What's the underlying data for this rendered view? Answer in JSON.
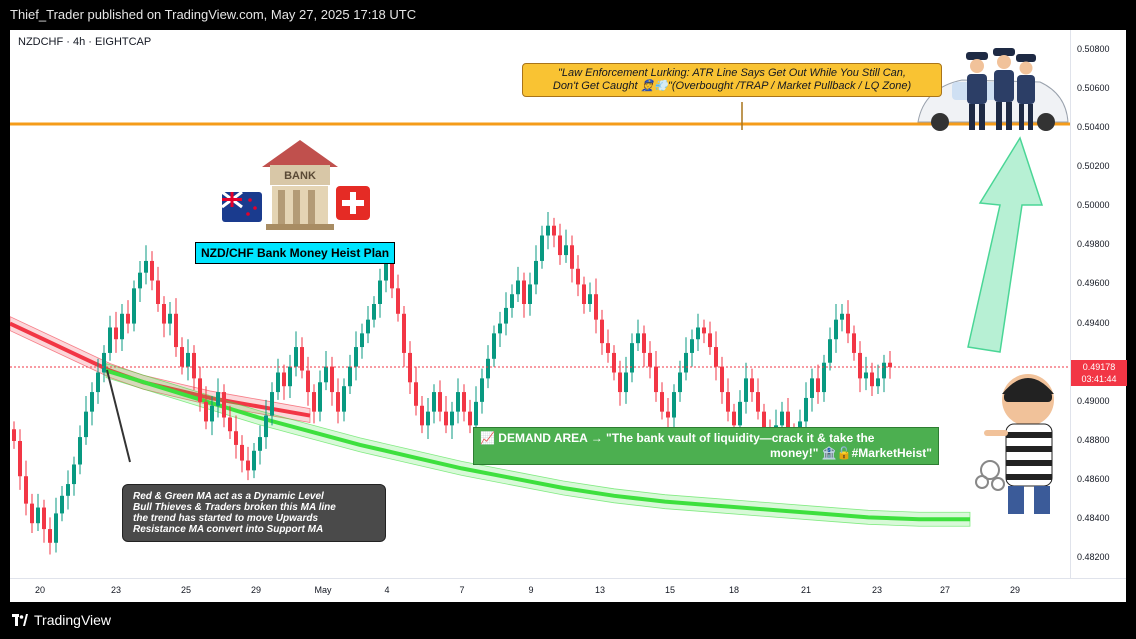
{
  "header": {
    "publisher_line": "Thief_Trader published on TradingView.com, May 27, 2025 17:18 UTC"
  },
  "footer": {
    "brand": "TradingView"
  },
  "symbol_line": "NZDCHF · 4h · EIGHTCAP",
  "price_axis": {
    "labels": [
      "0.50800",
      "0.50600",
      "0.50400",
      "0.50200",
      "0.50000",
      "0.49800",
      "0.49600",
      "0.49400",
      "0.49000",
      "0.48800",
      "0.48600",
      "0.48400",
      "0.48200"
    ],
    "current_price": "0.49178",
    "countdown": "03:41:44"
  },
  "time_axis": {
    "labels": [
      "20",
      "23",
      "25",
      "29",
      "May",
      "4",
      "7",
      "9",
      "13",
      "15",
      "18",
      "21",
      "23",
      "27",
      "29"
    ]
  },
  "annotations": {
    "bank_sign": "BANK",
    "plan_label": "NZD/CHF Bank Money Heist Plan",
    "ma_note_lines": [
      "Red & Green MA act as a Dynamic Level",
      "Bull Thieves & Traders broken this MA line",
      "the trend has started to move Upwards",
      "Resistance MA convert into Support MA"
    ],
    "demand_line1": "📈 DEMAND AREA → \"The bank vault of liquidity—crack it & take the",
    "demand_line2": "money!\" 🏦🔓#MarketHeist\"",
    "law_line1": "\"Law Enforcement Lurking: ATR Line Says Get Out While You Still Can,",
    "law_line2": "Don't Get Caught 👮💨\"(Overbought /TRAP / Market Pullback / LQ Zone)"
  },
  "colors": {
    "up": "#089981",
    "down": "#f23645",
    "red_ma": "#f23645",
    "green_ma": "#3ee03e",
    "resistance_line": "#f59c1a",
    "demand_fill": "#4caf50",
    "callout_fill": "#f9c333",
    "plan_label_fill": "#00e5ff"
  },
  "chart_data": {
    "type": "candlestick",
    "symbol": "NZDCHF",
    "timeframe": "4h",
    "broker": "EIGHTCAP",
    "ylim": [
      0.481,
      0.509
    ],
    "x_ticks": [
      "20",
      "23",
      "25",
      "29",
      "May",
      "4",
      "7",
      "9",
      "13",
      "15",
      "18",
      "21",
      "23",
      "27",
      "29"
    ],
    "resistance_level": 0.5042,
    "current_price": 0.49178,
    "closes": [
      0.488,
      0.4862,
      0.4848,
      0.4838,
      0.4846,
      0.4835,
      0.4828,
      0.4843,
      0.4852,
      0.4858,
      0.4868,
      0.4882,
      0.4895,
      0.4905,
      0.4915,
      0.4925,
      0.4938,
      0.4932,
      0.4945,
      0.494,
      0.4958,
      0.4966,
      0.4972,
      0.4962,
      0.495,
      0.494,
      0.4945,
      0.4928,
      0.4918,
      0.4925,
      0.4912,
      0.49,
      0.489,
      0.4898,
      0.4905,
      0.4892,
      0.4885,
      0.4878,
      0.487,
      0.4865,
      0.4875,
      0.4882,
      0.4893,
      0.4905,
      0.4915,
      0.4908,
      0.4918,
      0.4928,
      0.4916,
      0.4905,
      0.4895,
      0.491,
      0.4918,
      0.4905,
      0.4895,
      0.4908,
      0.4918,
      0.4928,
      0.4935,
      0.4942,
      0.495,
      0.4962,
      0.4972,
      0.4958,
      0.4945,
      0.4925,
      0.491,
      0.4898,
      0.4888,
      0.4895,
      0.4905,
      0.4895,
      0.4888,
      0.4895,
      0.4905,
      0.4895,
      0.4888,
      0.49,
      0.4912,
      0.4922,
      0.4935,
      0.494,
      0.4948,
      0.4955,
      0.4962,
      0.495,
      0.496,
      0.4972,
      0.4985,
      0.499,
      0.4985,
      0.4975,
      0.498,
      0.4968,
      0.496,
      0.495,
      0.4955,
      0.4942,
      0.493,
      0.4925,
      0.4915,
      0.4905,
      0.4915,
      0.493,
      0.4935,
      0.4925,
      0.4918,
      0.4905,
      0.4895,
      0.4892,
      0.4905,
      0.4915,
      0.4925,
      0.4932,
      0.4938,
      0.4935,
      0.4928,
      0.4918,
      0.4905,
      0.4895,
      0.4888,
      0.49,
      0.4912,
      0.4905,
      0.4895,
      0.4885,
      0.488,
      0.4888,
      0.4895,
      0.4885,
      0.488,
      0.489,
      0.4902,
      0.4912,
      0.4905,
      0.492,
      0.4932,
      0.4942,
      0.4945,
      0.4935,
      0.4925,
      0.4912,
      0.4915,
      0.4908,
      0.4912,
      0.492,
      0.49178
    ],
    "red_ma": [
      0.494,
      0.4932,
      0.4924,
      0.4916,
      0.491,
      0.4906,
      0.4902,
      0.4899,
      0.4896,
      0.4893
    ],
    "green_ma": [
      0.4916,
      0.4908,
      0.49,
      0.4892,
      0.4885,
      0.4878,
      0.4872,
      0.4866,
      0.4861,
      0.4856,
      0.4852,
      0.4849,
      0.4847,
      0.4845,
      0.4843,
      0.4841,
      0.484,
      0.484
    ]
  }
}
